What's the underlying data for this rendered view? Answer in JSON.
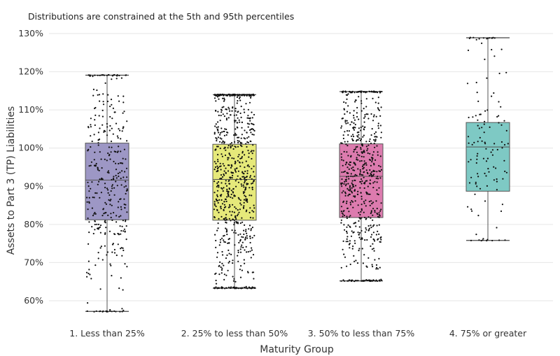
{
  "chart_data": {
    "type": "box",
    "title": "",
    "subtitle": "Distributions are constrained at the 5th and 95th percentiles",
    "xlabel": "Maturity Group",
    "ylabel": "Assets to Part 3 (TP) Liabilities",
    "ylim": [
      55,
      131
    ],
    "yticks": [
      60,
      70,
      80,
      90,
      100,
      110,
      120,
      130
    ],
    "ytick_labels": [
      "60%",
      "70%",
      "80%",
      "90%",
      "100%",
      "110%",
      "120%",
      "130%"
    ],
    "grid": true,
    "categories": [
      "1. Less than 25%",
      "2. 25% to less than 50%",
      "3. 50% to less than 75%",
      "4. 75% or greater"
    ],
    "groups": [
      {
        "category": "1. Less than 25%",
        "color": "#9d97c5",
        "min": 57.2,
        "q1": 81.2,
        "median": 91.6,
        "q3": 101.3,
        "max": 119.1,
        "n_points": 320
      },
      {
        "category": "2. 25% to less than 50%",
        "color": "#e6e97a",
        "min": 63.3,
        "q1": 81.1,
        "median": 91.8,
        "q3": 101.0,
        "max": 114.0,
        "n_points": 700
      },
      {
        "category": "3. 50% to less than 75%",
        "color": "#dc7bae",
        "min": 65.2,
        "q1": 81.8,
        "median": 92.6,
        "q3": 101.1,
        "max": 114.8,
        "n_points": 580
      },
      {
        "category": "4. 75% or greater",
        "color": "#7ec9c4",
        "min": 75.8,
        "q1": 88.7,
        "median": 100.3,
        "q3": 106.7,
        "max": 128.9,
        "n_points": 110
      }
    ]
  }
}
